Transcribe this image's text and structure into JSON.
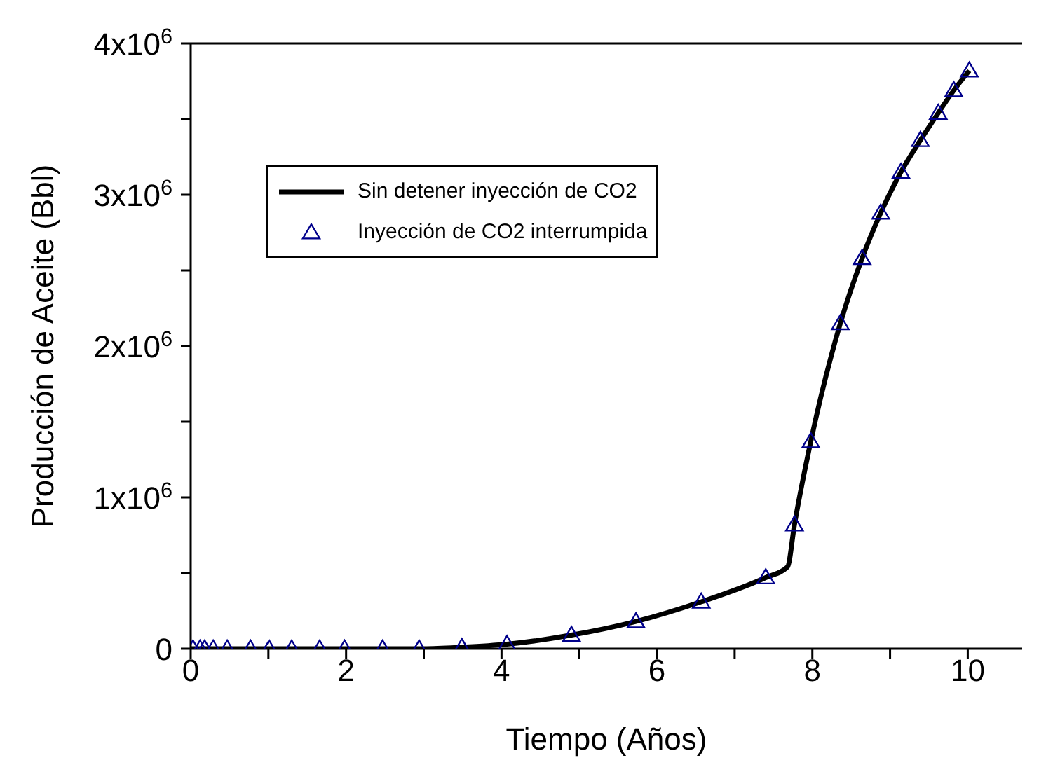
{
  "chart_data": {
    "type": "line",
    "xlabel": "Tiempo (Años)",
    "ylabel": "Producción de Aceite (Bbl)",
    "xlim": [
      0,
      10.7
    ],
    "ylim": [
      0,
      4000000
    ],
    "xticks": [
      0,
      {
        "value": 1,
        "label": null
      },
      2,
      {
        "value": 3,
        "label": null
      },
      4,
      {
        "value": 5,
        "label": null
      },
      6,
      {
        "value": 7,
        "label": null
      },
      8,
      {
        "value": 9,
        "label": null
      },
      10
    ],
    "yticks": [
      {
        "value": 0,
        "label": "0"
      },
      {
        "value": 500000,
        "label": null
      },
      {
        "value": 1000000,
        "label": "1x10$^{6}$"
      },
      {
        "value": 1500000,
        "label": null
      },
      {
        "value": 2000000,
        "label": "2x10$^{6}$"
      },
      {
        "value": 2500000,
        "label": null
      },
      {
        "value": 3000000,
        "label": "3x10$^{6}$"
      },
      {
        "value": 3500000,
        "label": null
      },
      {
        "value": 4000000,
        "label": "4x10$^{6}$"
      }
    ],
    "grid": false,
    "legend": "top left",
    "series": [
      {
        "name": "Sin detener inyección de CO2",
        "color": "#000000",
        "marker": "none",
        "line_style": "solid",
        "x": [
          0,
          1,
          2,
          3,
          3.5,
          4.07,
          4.9,
          5.73,
          6.57,
          7.4,
          7.68,
          7.77,
          7.98,
          8.36,
          8.64,
          8.88,
          9.14,
          9.39,
          9.62,
          9.82,
          10.02
        ],
        "values": [
          0,
          0,
          0,
          0,
          10000,
          30000,
          90000,
          180000,
          310000,
          470000,
          540000,
          820000,
          1370000,
          2150000,
          2580000,
          2880000,
          3150000,
          3360000,
          3540000,
          3690000,
          3820000
        ]
      },
      {
        "name": "Inyección de CO2 interrumpida",
        "type": "scatter",
        "color": "#00008b",
        "marker": "triangle",
        "x": [
          0.03,
          0.12,
          0.18,
          0.29,
          0.47,
          0.77,
          1.01,
          1.3,
          1.66,
          1.98,
          2.47,
          2.94,
          3.49,
          4.07,
          4.9,
          5.73,
          6.57,
          7.4,
          7.77,
          7.98,
          8.36,
          8.64,
          8.88,
          9.14,
          9.39,
          9.62,
          9.82,
          10.02
        ],
        "values": [
          0,
          0,
          0,
          0,
          0,
          0,
          0,
          0,
          0,
          0,
          0,
          0,
          10000,
          30000,
          90000,
          180000,
          310000,
          470000,
          820000,
          1370000,
          2150000,
          2580000,
          2880000,
          3150000,
          3360000,
          3540000,
          3690000,
          3820000
        ]
      }
    ]
  }
}
